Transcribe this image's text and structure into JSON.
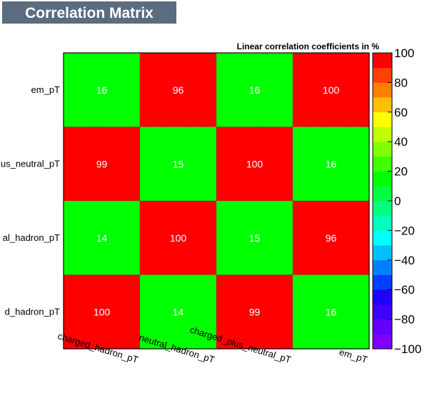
{
  "chart_data": {
    "type": "heatmap",
    "title": "Correlation Matrix",
    "subtitle": "Linear correlation coefficients in %",
    "x_categories": [
      "charged_hadron_pT",
      "neutral_hadron_pT",
      "charged_plus_neutral_pT",
      "em_pT"
    ],
    "y_categories": [
      "em_pT",
      "charged_plus_neutral_pT",
      "neutral_hadron_pT",
      "charged_hadron_pT"
    ],
    "y_labels_visible": [
      "em_pT",
      "us_neutral_pT",
      "al_hadron_pT",
      "d_hadron_pT"
    ],
    "values": [
      [
        16,
        96,
        16,
        100
      ],
      [
        99,
        15,
        100,
        16
      ],
      [
        14,
        100,
        15,
        96
      ],
      [
        100,
        14,
        99,
        16
      ]
    ],
    "zlim": [
      -100,
      100
    ],
    "z_ticks": [
      100,
      80,
      60,
      40,
      20,
      0,
      -20,
      -40,
      -60,
      -80,
      -100
    ],
    "z_tick_labels": [
      "100",
      "80",
      "60",
      "40",
      "20",
      "0",
      "−20",
      "−40",
      "−60",
      "−80",
      "−100"
    ],
    "palette": [
      "#8000ff",
      "#6000ff",
      "#4000ff",
      "#2000ff",
      "#0040ff",
      "#0080ff",
      "#00bfff",
      "#00ffff",
      "#00ffbf",
      "#00ff80",
      "#00ff40",
      "#00ff00",
      "#40ff00",
      "#80ff00",
      "#bfff00",
      "#ffff00",
      "#ffbf00",
      "#ff8000",
      "#ff4000",
      "#ff0000"
    ],
    "high_color": "#ff0000",
    "low_color": "#00ff00"
  },
  "colors": {
    "title_box": "#5b6b80",
    "axis": "#000000"
  }
}
